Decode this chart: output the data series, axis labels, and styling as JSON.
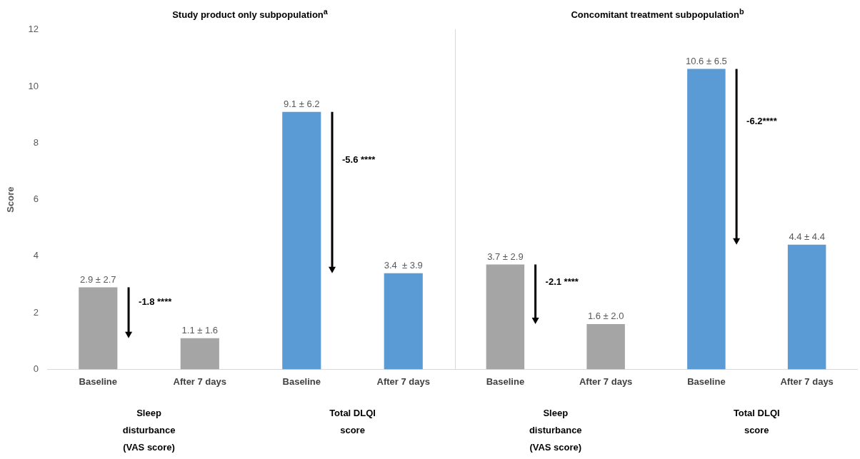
{
  "chart_data": [
    {
      "type": "bar",
      "title": "Study product only subpopulation$^{a}$",
      "ylabel": "Score",
      "categories": [
        "Baseline",
        "After 7 days",
        "Baseline",
        "After 7 days"
      ],
      "values": [
        2.9,
        1.1,
        9.1,
        3.4
      ],
      "colors": [
        "#a5a5a5",
        "#a5a5a5",
        "#5b9bd5",
        "#5b9bd5"
      ],
      "value_labels": [
        "2.9 ± 2.7",
        "1.1 ± 1.6",
        "9.1 ± 6.2",
        "3.4  ± 3.9"
      ],
      "ylim": [
        0,
        12
      ],
      "yticks": [
        0,
        2,
        4,
        6,
        8,
        10,
        12
      ],
      "annotations": [
        "-1.8 ****",
        "-5.6 ****",
        "Sleep disturbance (VAS score)",
        "Total DLQI score"
      ]
    },
    {
      "type": "bar",
      "title": "Concomitant treatment subpopulation$^{b}$",
      "categories": [
        "Baseline",
        "After 7 days",
        "Baseline",
        "After 7 days"
      ],
      "values": [
        3.7,
        1.6,
        10.6,
        4.4
      ],
      "colors": [
        "#a5a5a5",
        "#a5a5a5",
        "#5b9bd5",
        "#5b9bd5"
      ],
      "value_labels": [
        "3.7 ± 2.9",
        "1.6 ± 2.0",
        "10.6 ± 6.5",
        "4.4 ± 4.4"
      ],
      "ylim": [
        0,
        12
      ],
      "yticks": [
        0,
        2,
        4,
        6,
        8,
        10,
        12
      ],
      "tick_labels": "x",
      "annotations": [
        "-2.1 ****",
        "-6.2****",
        "Sleep disturbance (VAS score)",
        "Total DLQI score"
      ]
    }
  ]
}
